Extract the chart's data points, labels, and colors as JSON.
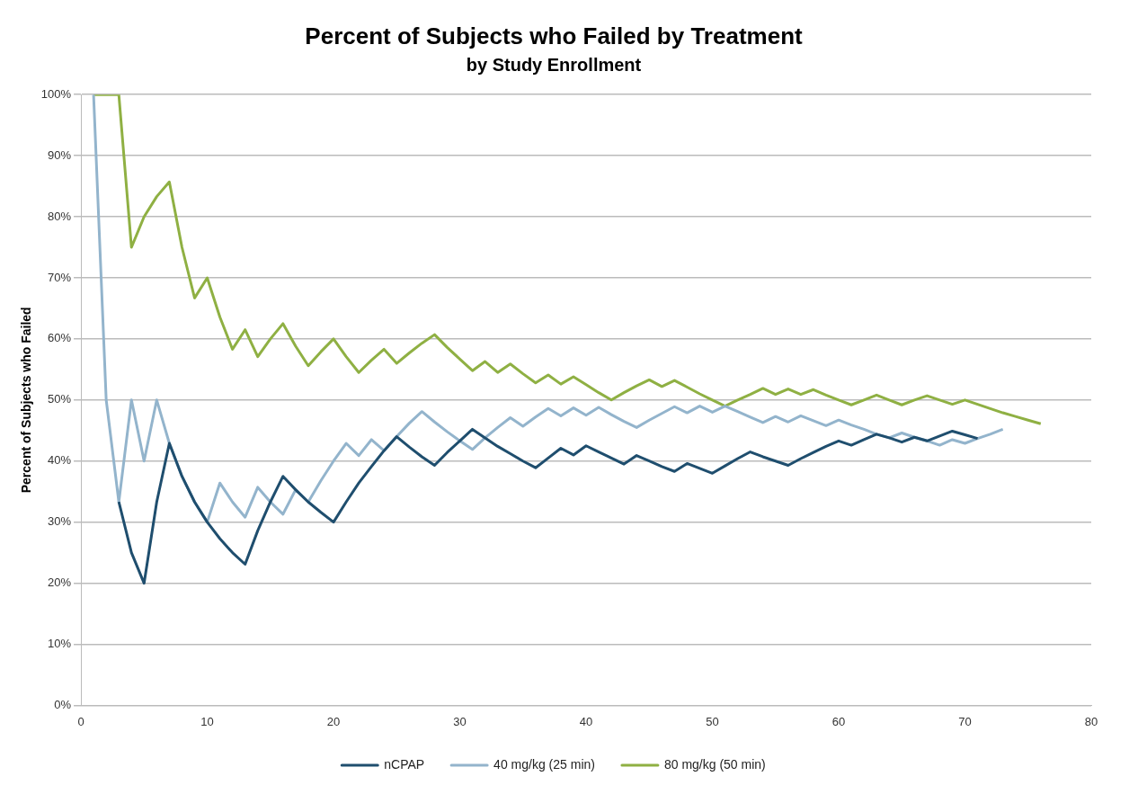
{
  "chart_data": {
    "type": "line",
    "title": "Percent of Subjects who Failed by Treatment",
    "subtitle": "by Study Enrollment",
    "ylabel": "Percent of Subjects who Failed",
    "xlim": [
      0,
      80
    ],
    "xticks": [
      0,
      10,
      20,
      30,
      40,
      50,
      60,
      70,
      80
    ],
    "ylim": [
      0,
      100
    ],
    "yticks": [
      {
        "value": 0,
        "label": "0%"
      },
      {
        "value": 10,
        "label": "10%"
      },
      {
        "value": 20,
        "label": "20%"
      },
      {
        "value": 30,
        "label": "30%"
      },
      {
        "value": 40,
        "label": "40%"
      },
      {
        "value": 50,
        "label": "50%"
      },
      {
        "value": 60,
        "label": "60%"
      },
      {
        "value": 70,
        "label": "70%"
      },
      {
        "value": 80,
        "label": "80%"
      },
      {
        "value": 90,
        "label": "90%"
      },
      {
        "value": 100,
        "label": "100%"
      }
    ],
    "grid": "y",
    "legend": "bottom",
    "marker": "none",
    "line_style": "solid",
    "series": [
      {
        "name": "nCPAP",
        "color": "#1f4e6e",
        "x": [
          3,
          4,
          5,
          6,
          7,
          8,
          9,
          10,
          11,
          12,
          13,
          14,
          15,
          16,
          17,
          18,
          19,
          20,
          21,
          22,
          23,
          24,
          25,
          26,
          27,
          28,
          29,
          30,
          31,
          32,
          33,
          34,
          35,
          36,
          37,
          38,
          39,
          40,
          41,
          42,
          43,
          44,
          45,
          46,
          47,
          48,
          49,
          50,
          51,
          52,
          53,
          54,
          55,
          56,
          57,
          58,
          59,
          60,
          61,
          62,
          63,
          64,
          65,
          66,
          67,
          68,
          69,
          70,
          71
        ],
        "values": [
          33.3,
          25,
          20,
          33.3,
          42.9,
          37.5,
          33.3,
          30,
          27.3,
          25,
          23.1,
          28.6,
          33.3,
          37.5,
          35.3,
          33.3,
          31.6,
          30,
          33.3,
          36.4,
          39.1,
          41.7,
          44,
          42.3,
          40.7,
          39.3,
          41.4,
          43.3,
          45.2,
          43.8,
          42.4,
          41.2,
          40,
          38.9,
          40.5,
          42.1,
          41,
          42.5,
          41.5,
          40.5,
          39.5,
          40.9,
          40,
          39.1,
          38.3,
          39.6,
          38.8,
          38,
          39.2,
          40.4,
          41.5,
          40.7,
          40,
          39.3,
          40.4,
          41.4,
          42.4,
          43.3,
          42.6,
          43.5,
          44.4,
          43.8,
          43.1,
          43.9,
          43.3,
          44.1,
          44.9,
          44.3,
          43.7
        ]
      },
      {
        "name": "40 mg/kg (25 min)",
        "color": "#93b4cc",
        "x": [
          1,
          2,
          3,
          4,
          5,
          6,
          7,
          8,
          9,
          10,
          11,
          12,
          13,
          14,
          15,
          16,
          17,
          18,
          19,
          20,
          21,
          22,
          23,
          24,
          25,
          26,
          27,
          28,
          29,
          30,
          31,
          32,
          33,
          34,
          35,
          36,
          37,
          38,
          39,
          40,
          41,
          42,
          43,
          44,
          45,
          46,
          47,
          48,
          49,
          50,
          51,
          52,
          53,
          54,
          55,
          56,
          57,
          58,
          59,
          60,
          61,
          62,
          63,
          64,
          65,
          66,
          67,
          68,
          69,
          70,
          71,
          72,
          73
        ],
        "values": [
          100,
          50,
          33.3,
          50,
          40,
          50,
          42.9,
          37.5,
          33.3,
          30,
          36.4,
          33.3,
          30.8,
          35.7,
          33.3,
          31.3,
          35.3,
          33.3,
          36.8,
          40,
          42.9,
          40.9,
          43.5,
          41.7,
          44,
          46.2,
          48.1,
          46.4,
          44.8,
          43.3,
          41.9,
          43.8,
          45.5,
          47.1,
          45.7,
          47.2,
          48.6,
          47.4,
          48.7,
          47.5,
          48.8,
          47.6,
          46.5,
          45.5,
          46.7,
          47.8,
          48.9,
          47.9,
          49,
          48,
          49,
          48.1,
          47.2,
          46.3,
          47.3,
          46.4,
          47.4,
          46.6,
          45.8,
          46.7,
          45.9,
          45.2,
          44.4,
          43.8,
          44.6,
          43.9,
          43.3,
          42.6,
          43.5,
          42.9,
          43.7,
          44.4,
          45.2
        ]
      },
      {
        "name": "80 mg/kg (50 min)",
        "color": "#8fb043",
        "x": [
          1,
          2,
          3,
          4,
          5,
          6,
          7,
          8,
          9,
          10,
          11,
          12,
          13,
          14,
          15,
          16,
          17,
          18,
          19,
          20,
          21,
          22,
          23,
          24,
          25,
          26,
          27,
          28,
          29,
          30,
          31,
          32,
          33,
          34,
          35,
          36,
          37,
          38,
          39,
          40,
          41,
          42,
          43,
          44,
          45,
          46,
          47,
          48,
          49,
          50,
          51,
          52,
          53,
          54,
          55,
          56,
          57,
          58,
          59,
          60,
          61,
          62,
          63,
          64,
          65,
          66,
          67,
          68,
          69,
          70,
          71,
          72,
          73,
          74,
          75,
          76
        ],
        "values": [
          100,
          100,
          100,
          75,
          80,
          83.3,
          85.7,
          75,
          66.7,
          70,
          63.6,
          58.3,
          61.5,
          57.1,
          60,
          62.5,
          58.8,
          55.6,
          57.9,
          60,
          57.1,
          54.5,
          56.5,
          58.3,
          56,
          57.7,
          59.3,
          60.7,
          58.6,
          56.7,
          54.8,
          56.3,
          54.5,
          55.9,
          54.3,
          52.8,
          54.1,
          52.6,
          53.8,
          52.5,
          51.2,
          50,
          51.2,
          52.3,
          53.3,
          52.2,
          53.2,
          52.1,
          51,
          50,
          49,
          50,
          50.9,
          51.9,
          50.9,
          51.8,
          50.9,
          51.7,
          50.8,
          50,
          49.2,
          50,
          50.8,
          50,
          49.2,
          50,
          50.7,
          50,
          49.3,
          50,
          49.3,
          48.6,
          47.9,
          47.3,
          46.7,
          46.1
        ]
      }
    ]
  }
}
